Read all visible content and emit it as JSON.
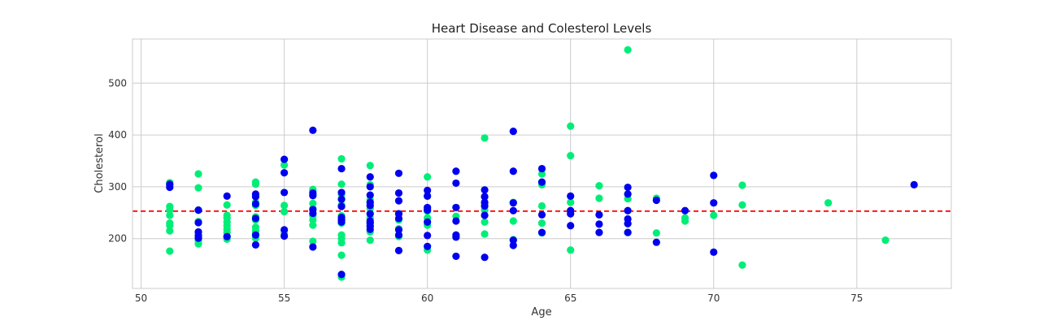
{
  "chart_data": {
    "type": "scatter",
    "title": "Heart Disease and Colesterol Levels",
    "xlabel": "Age",
    "ylabel": "Cholesterol",
    "xlim": [
      49.7,
      78.3
    ],
    "ylim": [
      104,
      585
    ],
    "xticks": [
      50,
      55,
      60,
      65,
      70,
      75
    ],
    "yticks": [
      200,
      300,
      400,
      500
    ],
    "grid": true,
    "reference_line": {
      "y": 253,
      "color": "#ff0000",
      "style": "dashed"
    },
    "series": [
      {
        "color": "#00ee77",
        "points": [
          [
            51,
            308
          ],
          [
            51,
            302
          ],
          [
            51,
            262
          ],
          [
            51,
            255
          ],
          [
            51,
            245
          ],
          [
            51,
            230
          ],
          [
            51,
            225
          ],
          [
            51,
            215
          ],
          [
            51,
            176
          ],
          [
            52,
            325
          ],
          [
            52,
            298
          ],
          [
            52,
            255
          ],
          [
            52,
            233
          ],
          [
            52,
            212
          ],
          [
            52,
            205
          ],
          [
            52,
            196
          ],
          [
            52,
            190
          ],
          [
            53,
            265
          ],
          [
            53,
            245
          ],
          [
            53,
            240
          ],
          [
            53,
            232
          ],
          [
            53,
            225
          ],
          [
            53,
            218
          ],
          [
            53,
            212
          ],
          [
            53,
            203
          ],
          [
            53,
            199
          ],
          [
            54,
            309
          ],
          [
            54,
            305
          ],
          [
            54,
            282
          ],
          [
            54,
            270
          ],
          [
            54,
            264
          ],
          [
            54,
            242
          ],
          [
            54,
            236
          ],
          [
            54,
            222
          ],
          [
            54,
            215
          ],
          [
            54,
            210
          ],
          [
            54,
            201
          ],
          [
            55,
            342
          ],
          [
            55,
            264
          ],
          [
            55,
            252
          ],
          [
            55,
            210
          ],
          [
            56,
            295
          ],
          [
            56,
            292
          ],
          [
            56,
            285
          ],
          [
            56,
            268
          ],
          [
            56,
            258
          ],
          [
            56,
            244
          ],
          [
            56,
            236
          ],
          [
            56,
            226
          ],
          [
            56,
            195
          ],
          [
            57,
            354
          ],
          [
            57,
            305
          ],
          [
            57,
            285
          ],
          [
            57,
            265
          ],
          [
            57,
            244
          ],
          [
            57,
            237
          ],
          [
            57,
            230
          ],
          [
            57,
            207
          ],
          [
            57,
            200
          ],
          [
            57,
            192
          ],
          [
            57,
            168
          ],
          [
            57,
            126
          ],
          [
            58,
            341
          ],
          [
            58,
            304
          ],
          [
            58,
            275
          ],
          [
            58,
            269
          ],
          [
            58,
            258
          ],
          [
            58,
            240
          ],
          [
            58,
            232
          ],
          [
            58,
            225
          ],
          [
            58,
            213
          ],
          [
            58,
            197
          ],
          [
            59,
            248
          ],
          [
            59,
            236
          ],
          [
            59,
            219
          ],
          [
            59,
            204
          ],
          [
            60,
            319
          ],
          [
            60,
            282
          ],
          [
            60,
            258
          ],
          [
            60,
            253
          ],
          [
            60,
            240
          ],
          [
            60,
            226
          ],
          [
            60,
            178
          ],
          [
            61,
            260
          ],
          [
            61,
            243
          ],
          [
            61,
            203
          ],
          [
            62,
            394
          ],
          [
            62,
            281
          ],
          [
            62,
            268
          ],
          [
            62,
            255
          ],
          [
            62,
            232
          ],
          [
            62,
            209
          ],
          [
            63,
            270
          ],
          [
            63,
            234
          ],
          [
            63,
            198
          ],
          [
            64,
            325
          ],
          [
            64,
            309
          ],
          [
            64,
            304
          ],
          [
            64,
            263
          ],
          [
            64,
            230
          ],
          [
            64,
            211
          ],
          [
            65,
            417
          ],
          [
            65,
            360
          ],
          [
            65,
            270
          ],
          [
            65,
            254
          ],
          [
            65,
            178
          ],
          [
            66,
            302
          ],
          [
            66,
            278
          ],
          [
            66,
            246
          ],
          [
            67,
            564
          ],
          [
            67,
            286
          ],
          [
            67,
            277
          ],
          [
            67,
            254
          ],
          [
            67,
            229
          ],
          [
            67,
            212
          ],
          [
            68,
            278
          ],
          [
            68,
            211
          ],
          [
            69,
            240
          ],
          [
            69,
            234
          ],
          [
            70,
            245
          ],
          [
            71,
            303
          ],
          [
            71,
            265
          ],
          [
            71,
            149
          ],
          [
            74,
            269
          ],
          [
            76,
            197
          ]
        ]
      },
      {
        "color": "#0000ee",
        "points": [
          [
            51,
            305
          ],
          [
            51,
            299
          ],
          [
            52,
            255
          ],
          [
            52,
            231
          ],
          [
            52,
            213
          ],
          [
            52,
            206
          ],
          [
            52,
            201
          ],
          [
            53,
            282
          ],
          [
            53,
            204
          ],
          [
            54,
            286
          ],
          [
            54,
            281
          ],
          [
            54,
            267
          ],
          [
            54,
            239
          ],
          [
            54,
            207
          ],
          [
            54,
            188
          ],
          [
            55,
            353
          ],
          [
            55,
            327
          ],
          [
            55,
            289
          ],
          [
            55,
            217
          ],
          [
            55,
            205
          ],
          [
            56,
            409
          ],
          [
            56,
            288
          ],
          [
            56,
            283
          ],
          [
            56,
            256
          ],
          [
            56,
            249
          ],
          [
            56,
            184
          ],
          [
            57,
            335
          ],
          [
            57,
            289
          ],
          [
            57,
            276
          ],
          [
            57,
            262
          ],
          [
            57,
            241
          ],
          [
            57,
            236
          ],
          [
            57,
            232
          ],
          [
            57,
            131
          ],
          [
            58,
            319
          ],
          [
            58,
            300
          ],
          [
            58,
            284
          ],
          [
            58,
            270
          ],
          [
            58,
            264
          ],
          [
            58,
            248
          ],
          [
            58,
            234
          ],
          [
            58,
            230
          ],
          [
            58,
            224
          ],
          [
            58,
            218
          ],
          [
            59,
            326
          ],
          [
            59,
            288
          ],
          [
            59,
            273
          ],
          [
            59,
            248
          ],
          [
            59,
            239
          ],
          [
            59,
            217
          ],
          [
            59,
            207
          ],
          [
            59,
            177
          ],
          [
            60,
            293
          ],
          [
            60,
            282
          ],
          [
            60,
            260
          ],
          [
            60,
            255
          ],
          [
            60,
            232
          ],
          [
            60,
            206
          ],
          [
            60,
            185
          ],
          [
            61,
            330
          ],
          [
            61,
            307
          ],
          [
            61,
            260
          ],
          [
            61,
            234
          ],
          [
            61,
            207
          ],
          [
            61,
            203
          ],
          [
            61,
            166
          ],
          [
            62,
            294
          ],
          [
            62,
            281
          ],
          [
            62,
            270
          ],
          [
            62,
            263
          ],
          [
            62,
            245
          ],
          [
            62,
            164
          ],
          [
            63,
            407
          ],
          [
            63,
            330
          ],
          [
            63,
            269
          ],
          [
            63,
            254
          ],
          [
            63,
            197
          ],
          [
            63,
            187
          ],
          [
            64,
            335
          ],
          [
            64,
            309
          ],
          [
            64,
            246
          ],
          [
            64,
            212
          ],
          [
            65,
            282
          ],
          [
            65,
            254
          ],
          [
            65,
            248
          ],
          [
            65,
            225
          ],
          [
            66,
            246
          ],
          [
            66,
            228
          ],
          [
            66,
            212
          ],
          [
            67,
            299
          ],
          [
            67,
            286
          ],
          [
            67,
            254
          ],
          [
            67,
            238
          ],
          [
            67,
            229
          ],
          [
            67,
            212
          ],
          [
            68,
            274
          ],
          [
            68,
            193
          ],
          [
            69,
            254
          ],
          [
            70,
            322
          ],
          [
            70,
            269
          ],
          [
            70,
            174
          ],
          [
            77,
            304
          ]
        ]
      }
    ]
  }
}
